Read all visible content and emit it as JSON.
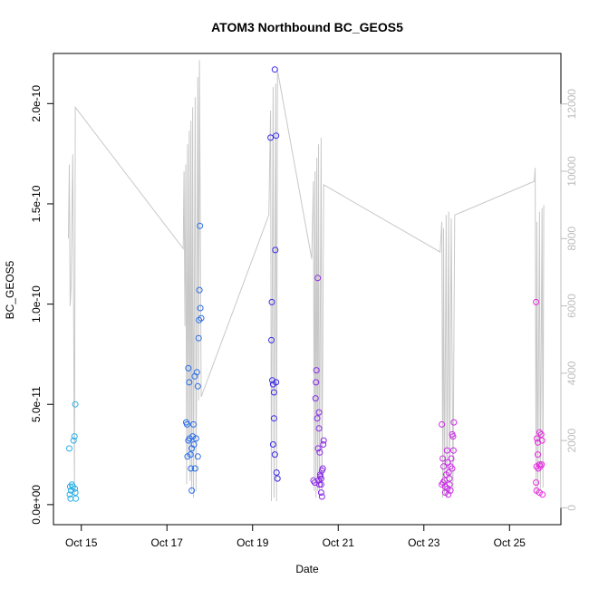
{
  "chart_data": {
    "type": "scatter",
    "title": "ATOM3 Northbound BC_GEOS5",
    "xlabel": "Date",
    "ylabel": "BC_GEOS5",
    "x_ticks": [
      "Oct 15",
      "Oct 17",
      "Oct 19",
      "Oct 21",
      "Oct 23",
      "Oct 25"
    ],
    "x_tick_positions_days": [
      15,
      17,
      19,
      21,
      23,
      25
    ],
    "xlim_days": [
      14.35,
      26.2
    ],
    "y_ticks": [
      "0.0e+00",
      "5.0e-11",
      "1.0e-10",
      "1.5e-10",
      "2.0e-10"
    ],
    "y_tick_values": [
      0,
      5e-11,
      1e-10,
      1.5e-10,
      2e-10
    ],
    "ylim": [
      -1e-11,
      2.25e-10
    ],
    "y2_ticks": [
      "0",
      "2000",
      "4000",
      "6000",
      "8000",
      "10000",
      "12000"
    ],
    "y2_tick_values": [
      0,
      2000,
      4000,
      6000,
      8000,
      10000,
      12000
    ],
    "y2lim": [
      -500,
      13500
    ],
    "colors": {
      "altitude_line": "#c8c8c8",
      "axis": "#000000",
      "right_axis": "#bdbdbd",
      "flight1": "#2ab0e8",
      "flight2": "#2a6ee8",
      "flight3": "#3a2ae8",
      "flight4": "#8a2ae8",
      "flight5": "#cc2ae8",
      "flight6": "#e82ae0"
    },
    "series": [
      {
        "color": "#2ab0e8",
        "points": [
          [
            14.72,
            2.8e-11
          ],
          [
            14.74,
            9e-12
          ],
          [
            14.76,
            7e-12
          ],
          [
            14.78,
            1e-11
          ],
          [
            14.73,
            5e-12
          ],
          [
            14.75,
            3e-12
          ],
          [
            14.8,
            9e-12
          ],
          [
            14.82,
            3.2e-11
          ],
          [
            14.84,
            3.4e-11
          ],
          [
            14.86,
            5e-11
          ],
          [
            14.85,
            8e-12
          ],
          [
            14.86,
            6e-12
          ],
          [
            14.87,
            3e-12
          ]
        ]
      },
      {
        "color": "#2a6ee8",
        "points": [
          [
            17.45,
            4.1e-11
          ],
          [
            17.47,
            4e-11
          ],
          [
            17.5,
            6.8e-11
          ],
          [
            17.52,
            6.1e-11
          ],
          [
            17.48,
            2.4e-11
          ],
          [
            17.5,
            3.2e-11
          ],
          [
            17.53,
            3.3e-11
          ],
          [
            17.55,
            2.5e-11
          ],
          [
            17.56,
            1.8e-11
          ],
          [
            17.58,
            2.8e-11
          ],
          [
            17.6,
            3.4e-11
          ],
          [
            17.62,
            4e-11
          ],
          [
            17.63,
            3e-11
          ],
          [
            17.65,
            6.4e-11
          ],
          [
            17.66,
            1.8e-11
          ],
          [
            17.68,
            3.3e-11
          ],
          [
            17.7,
            6.6e-11
          ],
          [
            17.72,
            5.9e-11
          ],
          [
            17.58,
            7e-12
          ],
          [
            17.74,
            8.3e-11
          ],
          [
            17.75,
            9.2e-11
          ],
          [
            17.76,
            1.07e-10
          ],
          [
            17.78,
            9.8e-11
          ],
          [
            17.8,
            9.3e-11
          ],
          [
            17.77,
            1.39e-10
          ],
          [
            17.72,
            2.4e-11
          ]
        ]
      },
      {
        "color": "#3a2ae8",
        "points": [
          [
            19.42,
            1.83e-10
          ],
          [
            19.55,
            1.84e-10
          ],
          [
            19.52,
            2.17e-10
          ],
          [
            19.45,
            1.01e-10
          ],
          [
            19.44,
            8.2e-11
          ],
          [
            19.53,
            1.27e-10
          ],
          [
            19.46,
            6.2e-11
          ],
          [
            19.48,
            6e-11
          ],
          [
            19.5,
            5.6e-11
          ],
          [
            19.55,
            6.1e-11
          ],
          [
            19.5,
            4.3e-11
          ],
          [
            19.48,
            3e-11
          ],
          [
            19.52,
            2.5e-11
          ],
          [
            19.56,
            1.6e-11
          ],
          [
            19.58,
            1.3e-11
          ]
        ]
      },
      {
        "color": "#8a2ae8",
        "points": [
          [
            20.42,
            1.2e-11
          ],
          [
            20.45,
            1.1e-11
          ],
          [
            20.47,
            5.3e-11
          ],
          [
            20.48,
            6.1e-11
          ],
          [
            20.49,
            6.7e-11
          ],
          [
            20.52,
            1.13e-10
          ],
          [
            20.51,
            4.3e-11
          ],
          [
            20.55,
            4.6e-11
          ],
          [
            20.53,
            2.8e-11
          ],
          [
            20.55,
            3.8e-11
          ],
          [
            20.57,
            2.6e-11
          ],
          [
            20.58,
            1.5e-11
          ],
          [
            20.6,
            1.3e-11
          ],
          [
            20.62,
            1.7e-11
          ],
          [
            20.64,
            1.8e-11
          ],
          [
            20.66,
            3.2e-11
          ],
          [
            20.65,
            3e-11
          ],
          [
            20.6,
            1e-11
          ],
          [
            20.62,
            4e-12
          ],
          [
            20.6,
            6e-12
          ],
          [
            20.58,
            1.4e-11
          ],
          [
            20.56,
            1e-11
          ],
          [
            20.54,
            1.2e-11
          ]
        ]
      },
      {
        "color": "#cc2ae8",
        "points": [
          [
            23.42,
            4e-11
          ],
          [
            23.44,
            2.3e-11
          ],
          [
            23.46,
            1.9e-11
          ],
          [
            23.48,
            1.2e-11
          ],
          [
            23.5,
            9e-12
          ],
          [
            23.52,
            1.5e-11
          ],
          [
            23.54,
            2.7e-11
          ],
          [
            23.56,
            2.1e-11
          ],
          [
            23.58,
            1.6e-11
          ],
          [
            23.6,
            1.3e-11
          ],
          [
            23.62,
            1.9e-11
          ],
          [
            23.64,
            2.3e-11
          ],
          [
            23.66,
            3.5e-11
          ],
          [
            23.68,
            3.4e-11
          ],
          [
            23.7,
            4.1e-11
          ],
          [
            23.69,
            2.7e-11
          ],
          [
            23.6,
            1e-11
          ],
          [
            23.55,
            8e-12
          ],
          [
            23.5,
            6e-12
          ],
          [
            23.45,
            1.1e-11
          ],
          [
            23.42,
            1e-11
          ],
          [
            23.57,
            5e-12
          ],
          [
            23.62,
            7e-12
          ],
          [
            23.66,
            1.8e-11
          ]
        ]
      },
      {
        "color": "#e82ae0",
        "points": [
          [
            25.62,
            1.01e-10
          ],
          [
            25.64,
            3.3e-11
          ],
          [
            25.66,
            3.1e-11
          ],
          [
            25.7,
            3.6e-11
          ],
          [
            25.74,
            3.5e-11
          ],
          [
            25.76,
            3.2e-11
          ],
          [
            25.63,
            1.9e-11
          ],
          [
            25.67,
            1.8e-11
          ],
          [
            25.7,
            2e-11
          ],
          [
            25.72,
            1.9e-11
          ],
          [
            25.75,
            2e-11
          ],
          [
            25.62,
            1.1e-11
          ],
          [
            25.63,
            7e-12
          ],
          [
            25.7,
            6e-12
          ],
          [
            25.77,
            5e-12
          ],
          [
            25.66,
            2.5e-11
          ]
        ]
      }
    ],
    "altitude_trace": [
      [
        14.7,
        8000
      ],
      [
        14.72,
        10200
      ],
      [
        14.74,
        6000
      ],
      [
        14.76,
        6500
      ],
      [
        14.78,
        8500
      ],
      [
        14.8,
        10500
      ],
      [
        14.82,
        6200
      ],
      [
        14.84,
        400
      ],
      [
        14.86,
        11900
      ],
      [
        17.38,
        7700
      ],
      [
        17.4,
        10000
      ],
      [
        17.42,
        5400
      ],
      [
        17.44,
        10200
      ],
      [
        17.46,
        700
      ],
      [
        17.48,
        10800
      ],
      [
        17.5,
        1500
      ],
      [
        17.52,
        11200
      ],
      [
        17.54,
        800
      ],
      [
        17.56,
        11500
      ],
      [
        17.58,
        500
      ],
      [
        17.6,
        11900
      ],
      [
        17.62,
        300
      ],
      [
        17.66,
        12200
      ],
      [
        17.68,
        500
      ],
      [
        17.72,
        12800
      ],
      [
        17.74,
        3200
      ],
      [
        17.76,
        13300
      ],
      [
        17.8,
        3300
      ],
      [
        19.38,
        8700
      ],
      [
        19.42,
        11800
      ],
      [
        19.44,
        200
      ],
      [
        19.48,
        12500
      ],
      [
        19.5,
        300
      ],
      [
        19.54,
        12600
      ],
      [
        19.56,
        200
      ],
      [
        19.58,
        13000
      ],
      [
        20.38,
        7400
      ],
      [
        20.42,
        9700
      ],
      [
        20.44,
        500
      ],
      [
        20.46,
        10000
      ],
      [
        20.48,
        300
      ],
      [
        20.5,
        10400
      ],
      [
        20.52,
        500
      ],
      [
        20.54,
        10800
      ],
      [
        20.56,
        300
      ],
      [
        20.6,
        11000
      ],
      [
        20.62,
        500
      ],
      [
        20.66,
        9600
      ],
      [
        23.38,
        7600
      ],
      [
        23.42,
        8500
      ],
      [
        23.44,
        300
      ],
      [
        23.46,
        8300
      ],
      [
        23.48,
        400
      ],
      [
        23.52,
        8700
      ],
      [
        23.54,
        300
      ],
      [
        23.58,
        8800
      ],
      [
        23.6,
        400
      ],
      [
        23.64,
        8600
      ],
      [
        23.68,
        500
      ],
      [
        23.72,
        8700
      ],
      [
        25.58,
        9700
      ],
      [
        25.6,
        10100
      ],
      [
        25.62,
        400
      ],
      [
        25.64,
        8500
      ],
      [
        25.66,
        500
      ],
      [
        25.7,
        8800
      ],
      [
        25.72,
        500
      ],
      [
        25.76,
        8900
      ],
      [
        25.78,
        600
      ],
      [
        25.8,
        9000
      ]
    ]
  }
}
